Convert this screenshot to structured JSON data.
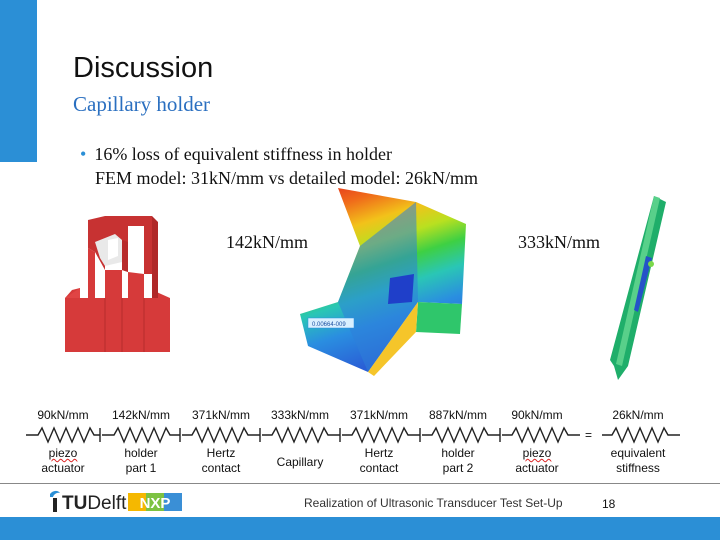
{
  "slide": {
    "title": "Discussion",
    "subtitle": "Capillary holder",
    "bullets": [
      "16% loss of equivalent stiffness in holder",
      "FEM model: 31kN/mm vs detailed model: 26kN/mm"
    ],
    "figure_labels": {
      "left_stiffness": "142kN/mm",
      "right_stiffness": "333kN/mm",
      "fem_tag": "0.00664-009"
    },
    "spring_chain": {
      "elements": [
        {
          "stiffness": "90kN/mm",
          "line1": "piezo",
          "line2": "actuator"
        },
        {
          "stiffness": "142kN/mm",
          "line1": "holder",
          "line2": "part 1"
        },
        {
          "stiffness": "371kN/mm",
          "line1": "Hertz",
          "line2": "contact"
        },
        {
          "stiffness": "333kN/mm",
          "line1": "Capillary",
          "line2": ""
        },
        {
          "stiffness": "371kN/mm",
          "line1": "Hertz",
          "line2": "contact"
        },
        {
          "stiffness": "887kN/mm",
          "line1": "holder",
          "line2": "part 2"
        },
        {
          "stiffness": "90kN/mm",
          "line1": "piezo",
          "line2": "actuator"
        }
      ],
      "equals": "=",
      "equivalent": {
        "stiffness": "26kN/mm",
        "line1": "equivalent",
        "line2": "stiffness"
      }
    },
    "footer": {
      "text": "Realization of Ultrasonic Transducer Test Set-Up",
      "page": "18",
      "logo_tud": {
        "bold": "TU",
        "rest": "Delft"
      },
      "logo_nxp": "NXP"
    },
    "colors": {
      "accent": "#2b8fd6",
      "subtitle": "#2a6fc0",
      "holder_red": "#d63a3a"
    }
  }
}
